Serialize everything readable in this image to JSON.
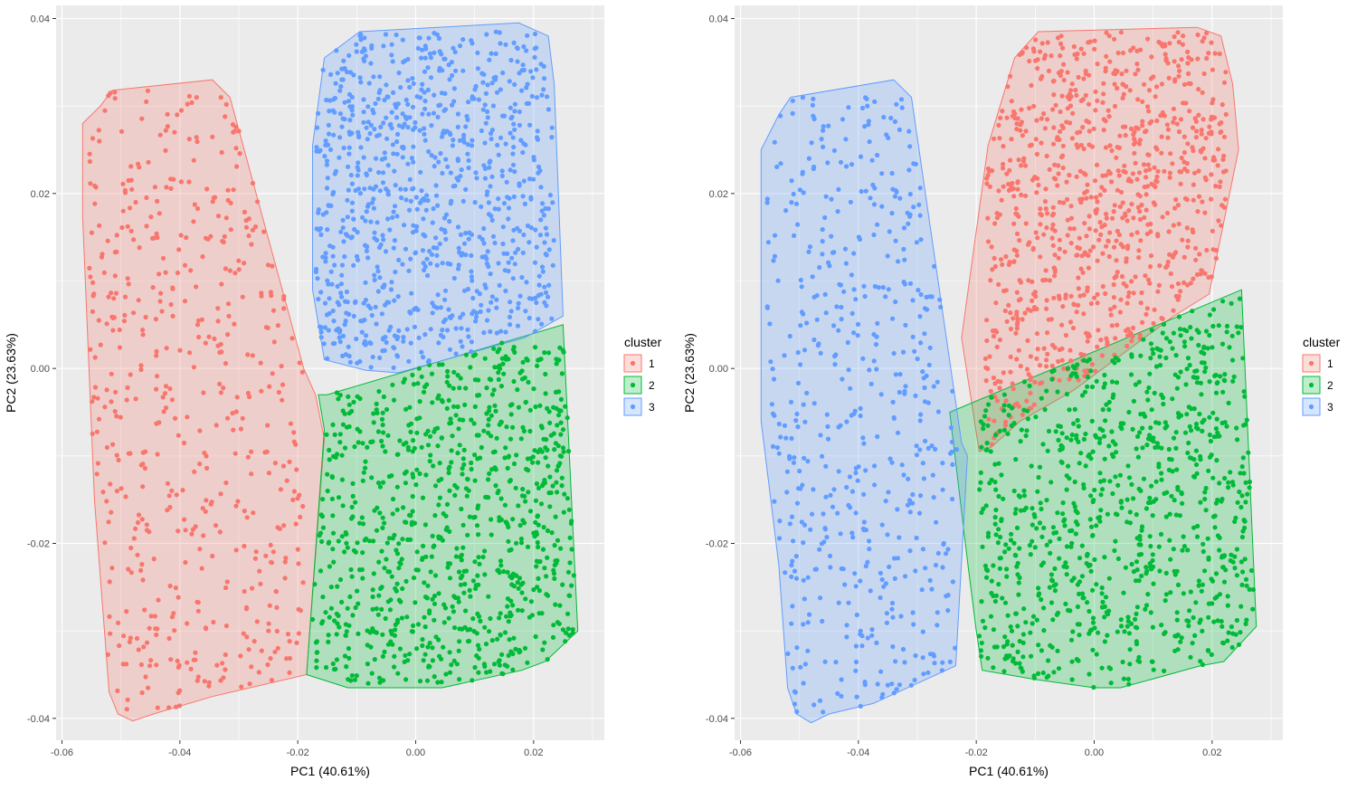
{
  "chart_data": [
    {
      "type": "scatter",
      "title": "",
      "xlabel": "PC1 (40.61%)",
      "ylabel": "PC2 (23.63%)",
      "xlim": [
        -0.061,
        0.032
      ],
      "ylim": [
        -0.0425,
        0.0415
      ],
      "xticks": [
        -0.06,
        -0.04,
        -0.02,
        0.0,
        0.02
      ],
      "xtick_labels": [
        "-0.06",
        "-0.04",
        "-0.02",
        "0.00",
        "0.02"
      ],
      "yticks": [
        -0.04,
        -0.02,
        0.0,
        0.02,
        0.04
      ],
      "ytick_labels": [
        "-0.04",
        "-0.02",
        "0.00",
        "0.02",
        "0.04"
      ],
      "grid": true,
      "legend": {
        "title": "cluster",
        "placement": "right"
      },
      "series": [
        {
          "name": "1",
          "color": "#F8766D",
          "region": {
            "xmin": -0.0555,
            "xmax": -0.019,
            "ymin": -0.039,
            "ymax": 0.032
          },
          "hull": [
            [
              -0.0565,
              0.028
            ],
            [
              -0.0535,
              0.03
            ],
            [
              -0.0515,
              0.0318
            ],
            [
              -0.0345,
              0.033
            ],
            [
              -0.0315,
              0.031
            ],
            [
              -0.019,
              0.0
            ],
            [
              -0.017,
              -0.003
            ],
            [
              -0.0155,
              -0.008
            ],
            [
              -0.0185,
              -0.035
            ],
            [
              -0.0345,
              -0.0375
            ],
            [
              -0.0445,
              -0.0395
            ],
            [
              -0.048,
              -0.0403
            ],
            [
              -0.0505,
              -0.0395
            ],
            [
              -0.052,
              -0.037
            ],
            [
              -0.0545,
              -0.015
            ],
            [
              -0.0565,
              0.0175
            ],
            [
              -0.0565,
              0.026
            ]
          ]
        },
        {
          "name": "2",
          "color": "#00BA38",
          "region": {
            "xmin": -0.0175,
            "xmax": 0.027,
            "ymin": -0.036,
            "ymax": 0.003
          },
          "hull": [
            [
              -0.0185,
              -0.035
            ],
            [
              -0.0155,
              -0.007
            ],
            [
              -0.0165,
              -0.003
            ],
            [
              -0.015,
              -0.003
            ],
            [
              0.025,
              0.005
            ],
            [
              0.0275,
              -0.03
            ],
            [
              0.022,
              -0.0335
            ],
            [
              0.018,
              -0.0345
            ],
            [
              0.0045,
              -0.0365
            ],
            [
              0.0,
              -0.0365
            ],
            [
              -0.0115,
              -0.0365
            ]
          ]
        },
        {
          "name": "3",
          "color": "#619CFF",
          "region": {
            "xmin": -0.017,
            "xmax": 0.0235,
            "ymin": 0.0,
            "ymax": 0.0385
          },
          "hull": [
            [
              -0.0175,
              0.0255
            ],
            [
              -0.0155,
              0.0355
            ],
            [
              -0.0095,
              0.0385
            ],
            [
              0.0175,
              0.0395
            ],
            [
              0.0225,
              0.038
            ],
            [
              0.0235,
              0.0325
            ],
            [
              0.025,
              0.006
            ],
            [
              0.0185,
              0.0035
            ],
            [
              -0.003,
              -0.0005
            ],
            [
              -0.0085,
              -0.0002
            ],
            [
              -0.0155,
              0.001
            ],
            [
              -0.0175,
              0.009
            ]
          ]
        }
      ]
    },
    {
      "type": "scatter",
      "title": "",
      "xlabel": "PC1 (40.61%)",
      "ylabel": "PC2 (23.63%)",
      "xlim": [
        -0.061,
        0.032
      ],
      "ylim": [
        -0.0425,
        0.0415
      ],
      "xticks": [
        -0.06,
        -0.04,
        -0.02,
        0.0,
        0.02
      ],
      "xtick_labels": [
        "-0.06",
        "-0.04",
        "-0.02",
        "0.00",
        "0.02"
      ],
      "yticks": [
        -0.04,
        -0.02,
        0.0,
        0.02,
        0.04
      ],
      "ytick_labels": [
        "-0.04",
        "-0.02",
        "0.00",
        "0.02",
        "0.04"
      ],
      "grid": true,
      "legend": {
        "title": "cluster",
        "placement": "right"
      },
      "series": [
        {
          "name": "1",
          "color": "#F8766D",
          "region": {
            "xmin": -0.0185,
            "xmax": 0.0225,
            "ymin": -0.009,
            "ymax": 0.0385
          },
          "hull": [
            [
              -0.0225,
              0.0035
            ],
            [
              -0.018,
              0.0255
            ],
            [
              -0.0135,
              0.0355
            ],
            [
              -0.0095,
              0.0385
            ],
            [
              0.0175,
              0.039
            ],
            [
              0.0215,
              0.038
            ],
            [
              0.0235,
              0.0325
            ],
            [
              0.0245,
              0.025
            ],
            [
              0.0195,
              0.0085
            ],
            [
              0.0135,
              0.006
            ],
            [
              -0.0035,
              -0.0025
            ],
            [
              -0.0125,
              -0.006
            ],
            [
              -0.0175,
              -0.009
            ],
            [
              -0.0195,
              -0.0095
            ]
          ]
        },
        {
          "name": "2",
          "color": "#00BA38",
          "region": {
            "xmin": -0.0195,
            "xmax": 0.027,
            "ymin": -0.0365,
            "ymax": 0.0085
          },
          "hull": [
            [
              -0.0245,
              -0.005
            ],
            [
              0.025,
              0.009
            ],
            [
              0.0275,
              -0.0295
            ],
            [
              0.022,
              -0.0335
            ],
            [
              0.018,
              -0.034
            ],
            [
              0.0045,
              -0.0365
            ],
            [
              0.0,
              -0.0365
            ],
            [
              -0.0105,
              -0.0355
            ],
            [
              -0.019,
              -0.0345
            ],
            [
              -0.02,
              -0.03
            ],
            [
              -0.0215,
              -0.022
            ]
          ]
        },
        {
          "name": "3",
          "color": "#619CFF",
          "region": {
            "xmin": -0.0555,
            "xmax": -0.0225,
            "ymin": -0.0395,
            "ymax": 0.031
          },
          "hull": [
            [
              -0.0565,
              0.025
            ],
            [
              -0.0535,
              0.029
            ],
            [
              -0.0515,
              0.031
            ],
            [
              -0.034,
              0.033
            ],
            [
              -0.031,
              0.031
            ],
            [
              -0.0225,
              -0.0085
            ],
            [
              -0.0215,
              -0.01
            ],
            [
              -0.0235,
              -0.034
            ],
            [
              -0.0375,
              -0.0383
            ],
            [
              -0.045,
              -0.0395
            ],
            [
              -0.048,
              -0.0405
            ],
            [
              -0.0505,
              -0.0395
            ],
            [
              -0.052,
              -0.0365
            ],
            [
              -0.0535,
              -0.0225
            ],
            [
              -0.0565,
              -0.006
            ]
          ]
        }
      ]
    }
  ]
}
